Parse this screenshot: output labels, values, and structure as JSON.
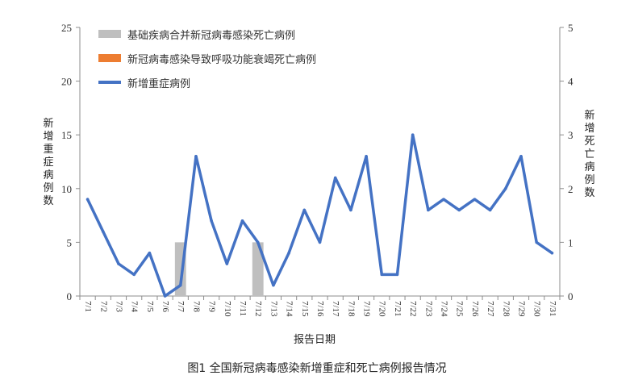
{
  "figure": {
    "caption": "图1   全国新冠病毒感染新增重症和死亡病例报告情况"
  },
  "chart_data": {
    "type": "bar+line",
    "categories": [
      "7/1",
      "7/2",
      "7/3",
      "7/4",
      "7/5",
      "7/6",
      "7/7",
      "7/8",
      "7/9",
      "7/10",
      "7/11",
      "7/12",
      "7/13",
      "7/14",
      "7/15",
      "7/16",
      "7/17",
      "7/18",
      "7/19",
      "7/20",
      "7/21",
      "7/22",
      "7/23",
      "7/24",
      "7/25",
      "7/26",
      "7/27",
      "7/28",
      "7/29",
      "7/30",
      "7/31"
    ],
    "xlabel": "报告日期",
    "ylabel_left": "新增重症病例数",
    "ylabel_right": "新增死亡病例数",
    "ylim_left": [
      0,
      25
    ],
    "ylim_right": [
      0,
      5
    ],
    "yticks_left": [
      "0",
      "5",
      "10",
      "15",
      "20",
      "25"
    ],
    "yticks_right": [
      "0",
      "1",
      "2",
      "3",
      "4",
      "5"
    ],
    "legend_placement": "top-left",
    "series": [
      {
        "name": "基础疾病合并新冠病毒感染死亡病例",
        "type": "bar",
        "axis": "right",
        "color": "#bfbfbf",
        "values": [
          0,
          0,
          0,
          0,
          0,
          0,
          1,
          0,
          0,
          0,
          0,
          1,
          0,
          0,
          0,
          0,
          0,
          0,
          0,
          0,
          0,
          0,
          0,
          0,
          0,
          0,
          0,
          0,
          0,
          0,
          0
        ]
      },
      {
        "name": "新冠病毒感染导致呼吸功能衰竭死亡病例",
        "type": "bar",
        "axis": "right",
        "color": "#ed7d31",
        "values": [
          0,
          0,
          0,
          0,
          0,
          0,
          0,
          0,
          0,
          0,
          0,
          0,
          0,
          0,
          0,
          0,
          0,
          0,
          0,
          0,
          0,
          0,
          0,
          0,
          0,
          0,
          0,
          0,
          0,
          0,
          0
        ]
      },
      {
        "name": "新增重症病例",
        "type": "line",
        "axis": "left",
        "color": "#4472c4",
        "values": [
          9,
          6,
          3,
          2,
          4,
          0,
          1,
          13,
          7,
          3,
          7,
          5,
          1,
          4,
          8,
          5,
          11,
          8,
          13,
          2,
          2,
          15,
          8,
          9,
          8,
          9,
          8,
          10,
          13,
          5,
          4
        ]
      }
    ]
  }
}
